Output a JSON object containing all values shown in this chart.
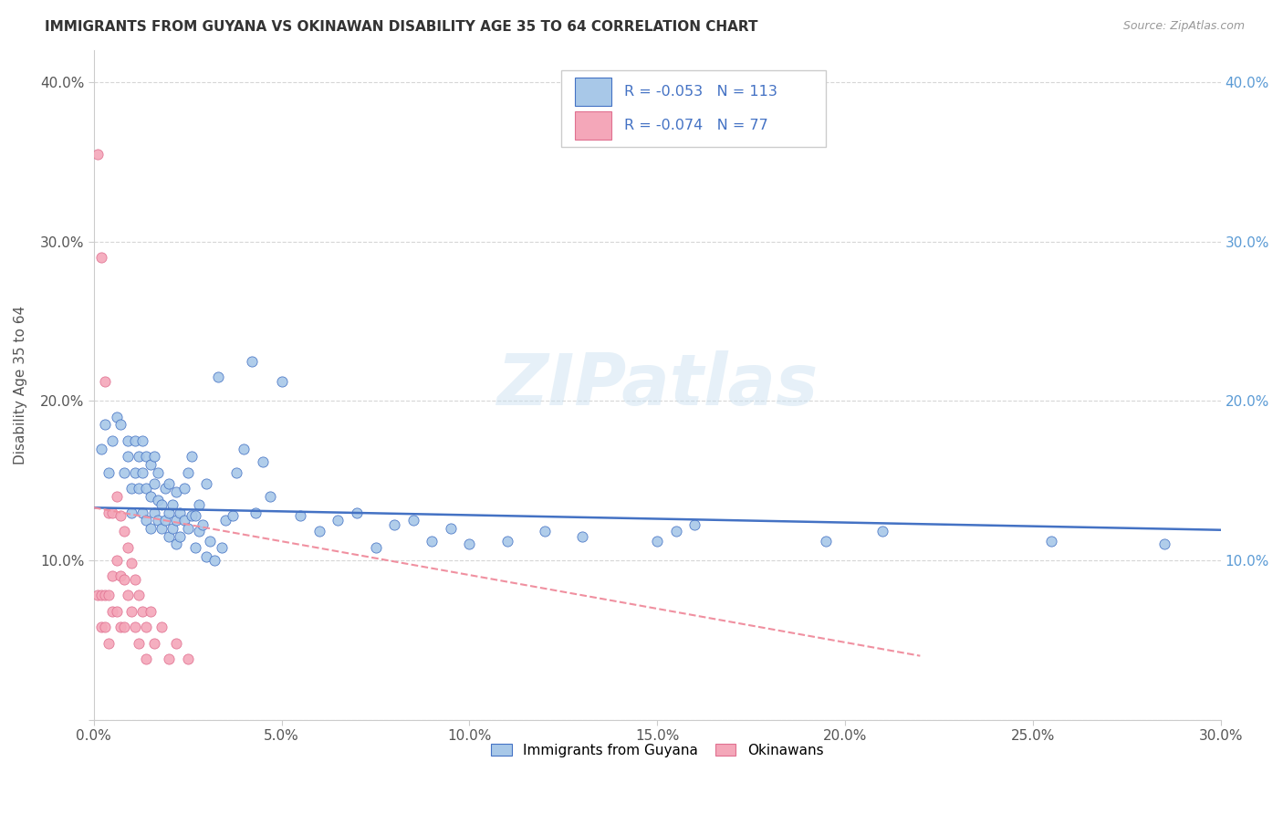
{
  "title": "IMMIGRANTS FROM GUYANA VS OKINAWAN DISABILITY AGE 35 TO 64 CORRELATION CHART",
  "source": "Source: ZipAtlas.com",
  "ylabel": "Disability Age 35 to 64",
  "xlim": [
    0.0,
    0.3
  ],
  "ylim": [
    0.0,
    0.42
  ],
  "xtick_vals": [
    0.0,
    0.05,
    0.1,
    0.15,
    0.2,
    0.25,
    0.3
  ],
  "xtick_labels": [
    "0.0%",
    "5.0%",
    "10.0%",
    "15.0%",
    "20.0%",
    "25.0%",
    "30.0%"
  ],
  "ytick_vals_left": [
    0.0,
    0.1,
    0.2,
    0.3,
    0.4
  ],
  "ytick_labels_left": [
    "",
    "10.0%",
    "20.0%",
    "30.0%",
    "40.0%"
  ],
  "ytick_vals_right": [
    0.1,
    0.2,
    0.3,
    0.4
  ],
  "ytick_labels_right": [
    "10.0%",
    "20.0%",
    "30.0%",
    "40.0%"
  ],
  "blue_fill": "#a8c8e8",
  "blue_edge": "#4472c4",
  "pink_fill": "#f4a7b9",
  "pink_edge": "#e07090",
  "blue_line_color": "#4472c4",
  "pink_line_color": "#f090a0",
  "R_blue": -0.053,
  "N_blue": 113,
  "R_pink": -0.074,
  "N_pink": 77,
  "legend_text_color": "#4472c4",
  "legend_label_blue": "Immigrants from Guyana",
  "legend_label_pink": "Okinawans",
  "watermark": "ZIPatlas",
  "blue_trend_x0": 0.0,
  "blue_trend_y0": 0.133,
  "blue_trend_x1": 0.3,
  "blue_trend_y1": 0.119,
  "pink_trend_x0": 0.0,
  "pink_trend_y0": 0.133,
  "pink_trend_x1": 0.22,
  "pink_trend_y1": 0.04,
  "blue_scatter_x": [
    0.002,
    0.003,
    0.004,
    0.005,
    0.006,
    0.007,
    0.008,
    0.009,
    0.009,
    0.01,
    0.01,
    0.011,
    0.011,
    0.012,
    0.012,
    0.013,
    0.013,
    0.013,
    0.014,
    0.014,
    0.014,
    0.015,
    0.015,
    0.015,
    0.016,
    0.016,
    0.016,
    0.017,
    0.017,
    0.017,
    0.018,
    0.018,
    0.019,
    0.019,
    0.02,
    0.02,
    0.02,
    0.021,
    0.021,
    0.022,
    0.022,
    0.022,
    0.023,
    0.023,
    0.024,
    0.024,
    0.025,
    0.025,
    0.026,
    0.026,
    0.027,
    0.027,
    0.028,
    0.028,
    0.029,
    0.03,
    0.03,
    0.031,
    0.032,
    0.033,
    0.034,
    0.035,
    0.037,
    0.038,
    0.04,
    0.042,
    0.043,
    0.045,
    0.047,
    0.05,
    0.055,
    0.06,
    0.065,
    0.07,
    0.075,
    0.08,
    0.085,
    0.09,
    0.095,
    0.1,
    0.11,
    0.12,
    0.13,
    0.15,
    0.155,
    0.16,
    0.195,
    0.21,
    0.255,
    0.285
  ],
  "blue_scatter_y": [
    0.17,
    0.185,
    0.155,
    0.175,
    0.19,
    0.185,
    0.155,
    0.165,
    0.175,
    0.145,
    0.13,
    0.155,
    0.175,
    0.145,
    0.165,
    0.13,
    0.155,
    0.175,
    0.125,
    0.145,
    0.165,
    0.12,
    0.14,
    0.16,
    0.13,
    0.148,
    0.165,
    0.125,
    0.138,
    0.155,
    0.12,
    0.135,
    0.125,
    0.145,
    0.115,
    0.13,
    0.148,
    0.12,
    0.135,
    0.11,
    0.125,
    0.143,
    0.115,
    0.13,
    0.125,
    0.145,
    0.12,
    0.155,
    0.128,
    0.165,
    0.108,
    0.128,
    0.118,
    0.135,
    0.122,
    0.102,
    0.148,
    0.112,
    0.1,
    0.215,
    0.108,
    0.125,
    0.128,
    0.155,
    0.17,
    0.225,
    0.13,
    0.162,
    0.14,
    0.212,
    0.128,
    0.118,
    0.125,
    0.13,
    0.108,
    0.122,
    0.125,
    0.112,
    0.12,
    0.11,
    0.112,
    0.118,
    0.115,
    0.112,
    0.118,
    0.122,
    0.112,
    0.118,
    0.112,
    0.11
  ],
  "pink_scatter_x": [
    0.001,
    0.001,
    0.002,
    0.002,
    0.002,
    0.003,
    0.003,
    0.003,
    0.004,
    0.004,
    0.004,
    0.005,
    0.005,
    0.005,
    0.006,
    0.006,
    0.006,
    0.007,
    0.007,
    0.007,
    0.008,
    0.008,
    0.008,
    0.009,
    0.009,
    0.01,
    0.01,
    0.011,
    0.011,
    0.012,
    0.012,
    0.013,
    0.014,
    0.014,
    0.015,
    0.016,
    0.018,
    0.02,
    0.022,
    0.025
  ],
  "pink_scatter_y": [
    0.355,
    0.078,
    0.29,
    0.078,
    0.058,
    0.212,
    0.078,
    0.058,
    0.13,
    0.078,
    0.048,
    0.13,
    0.09,
    0.068,
    0.14,
    0.1,
    0.068,
    0.128,
    0.09,
    0.058,
    0.118,
    0.088,
    0.058,
    0.108,
    0.078,
    0.098,
    0.068,
    0.088,
    0.058,
    0.078,
    0.048,
    0.068,
    0.058,
    0.038,
    0.068,
    0.048,
    0.058,
    0.038,
    0.048,
    0.038
  ]
}
